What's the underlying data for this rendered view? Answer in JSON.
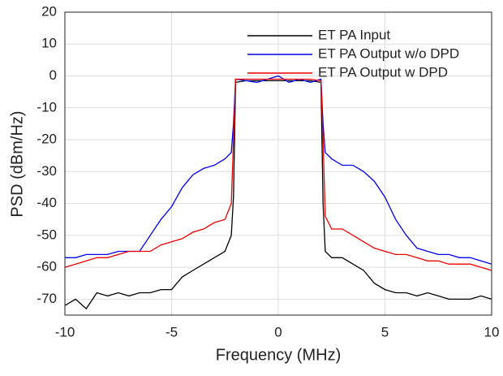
{
  "chart_data": {
    "type": "line",
    "xlabel": "Frequency (MHz)",
    "ylabel": "PSD (dBm/Hz)",
    "x": [
      -10,
      -9.5,
      -9,
      -8.5,
      -8,
      -7.5,
      -7,
      -6.5,
      -6,
      -5.5,
      -5,
      -4.5,
      -4,
      -3.5,
      -3,
      -2.5,
      -2.2,
      -2.1,
      -2.0,
      -1.5,
      -1,
      -0.5,
      0,
      0.5,
      1,
      1.5,
      2.0,
      2.1,
      2.2,
      2.5,
      3,
      3.5,
      4,
      4.5,
      5,
      5.5,
      6,
      6.5,
      7,
      7.5,
      8,
      8.5,
      9,
      9.5,
      10
    ],
    "series": [
      {
        "name": "ET PA Input",
        "color": "#000000",
        "values": [
          -72,
          -70,
          -73,
          -68,
          -69,
          -68,
          -69,
          -68,
          -68,
          -67,
          -67,
          -63,
          -61,
          -59,
          -57,
          -55,
          -50,
          -38,
          -2,
          -1.5,
          -1.5,
          -1.5,
          -1.5,
          -1.5,
          -1.5,
          -1.5,
          -2,
          -40,
          -55,
          -57,
          -57,
          -59,
          -61,
          -65,
          -67,
          -68,
          -68,
          -69,
          -68,
          -69,
          -70,
          -70,
          -70,
          -69,
          -70
        ]
      },
      {
        "name": "ET PA Output w/o DPD",
        "color": "#0000ee",
        "values": [
          -57,
          -57,
          -56,
          -56,
          -56,
          -55,
          -55,
          -55,
          -50,
          -45,
          -41,
          -35,
          -31,
          -29,
          -28,
          -26,
          -24,
          -15,
          -1,
          -1.5,
          -2,
          -1,
          0,
          -2,
          -1,
          -2,
          -1,
          -15,
          -24,
          -26,
          -28,
          -28,
          -30,
          -33,
          -38,
          -45,
          -50,
          -54,
          -55,
          -56,
          -56,
          -57,
          -57,
          -58,
          -59
        ]
      },
      {
        "name": "ET PA Output w DPD",
        "color": "#ee0000",
        "values": [
          -60,
          -59,
          -58,
          -57,
          -57,
          -56,
          -55,
          -55,
          -55,
          -53,
          -52,
          -51,
          -49,
          -48,
          -46,
          -45,
          -40,
          -20,
          -1,
          -1,
          -1,
          -1,
          -1,
          -1,
          -1,
          -1,
          -1.5,
          -20,
          -44,
          -48,
          -48,
          -50,
          -52,
          -54,
          -55,
          -56,
          -56,
          -57,
          -58,
          -58,
          -59,
          -59,
          -59,
          -60,
          -61
        ]
      }
    ],
    "xlim": [
      -10,
      10
    ],
    "xticks": [
      -10,
      -5,
      0,
      5,
      10
    ],
    "ylim": [
      -75,
      20
    ],
    "yticks": [
      20,
      10,
      0,
      -10,
      -20,
      -30,
      -40,
      -50,
      -60,
      -70
    ],
    "grid": true,
    "legend": "upper right"
  }
}
